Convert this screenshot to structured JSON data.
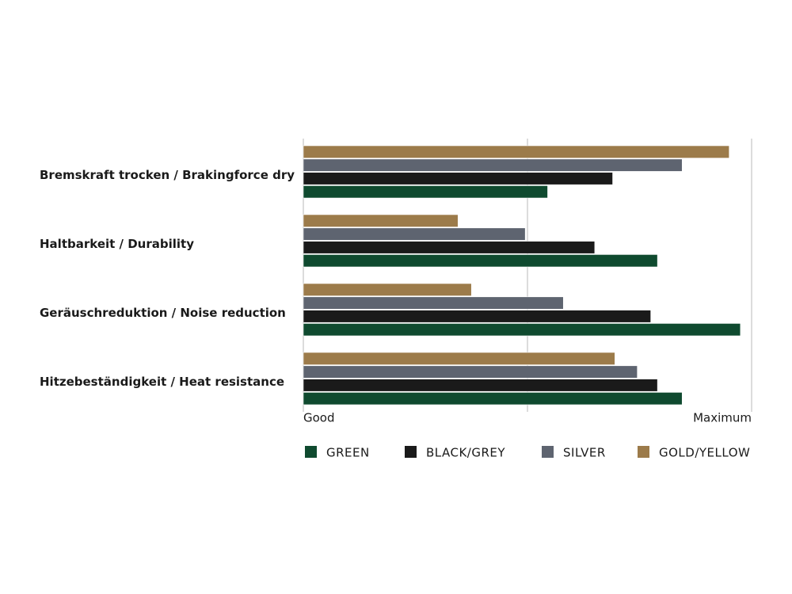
{
  "chart_data": {
    "type": "hbar",
    "categories": [
      "Bremskraft trocken / Brakingforce dry",
      "Haltbarkeit / Durability",
      "Geräuschreduktion / Noise reduction",
      "Hitzebeständigkeit / Heat resistance"
    ],
    "series": [
      {
        "name": "GREEN",
        "color": "#0f4a2f",
        "values": [
          54.5,
          79,
          97.5,
          84.5
        ]
      },
      {
        "name": "BLACK/GREY",
        "color": "#1a1a1a",
        "values": [
          69,
          65,
          77.5,
          79
        ]
      },
      {
        "name": "SILVER",
        "color": "#5e6470",
        "values": [
          84.5,
          49.5,
          58,
          74.5
        ]
      },
      {
        "name": "GOLD/YELLOW",
        "color": "#9c7b4a",
        "values": [
          95,
          34.5,
          37.5,
          69.5
        ]
      }
    ],
    "xlim": [
      0,
      100
    ],
    "xticks": [
      {
        "value": 0,
        "label": "Good"
      },
      {
        "value": 50,
        "label": null
      },
      {
        "value": 100,
        "label": "Maximum"
      }
    ],
    "grid": true
  }
}
